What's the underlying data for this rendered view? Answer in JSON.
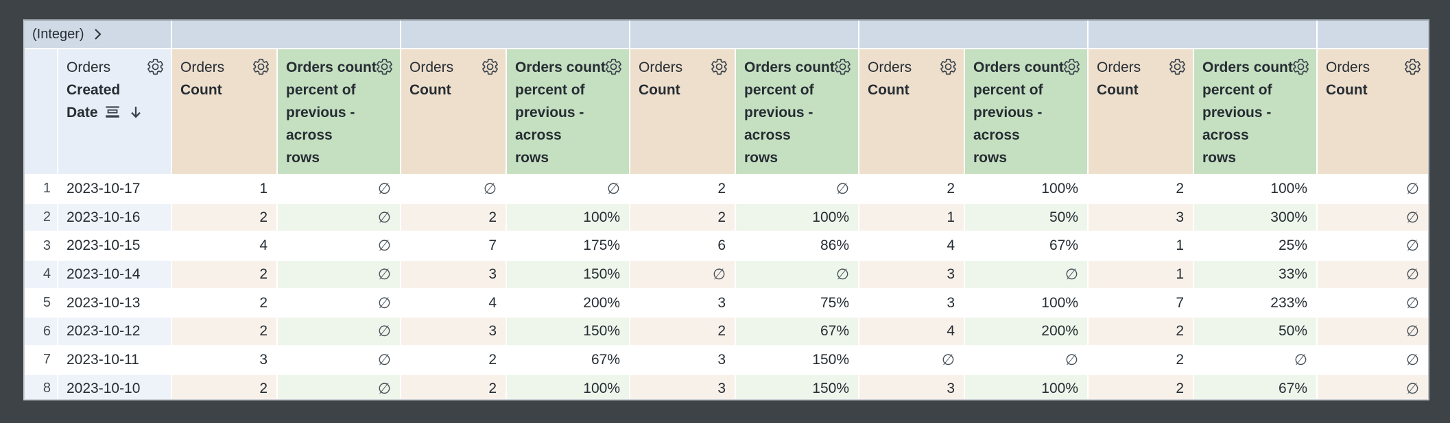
{
  "pivot_header": {
    "label": "(Integer)"
  },
  "first_column": {
    "view": "Orders",
    "field_line1": "Created",
    "field_line2": "Date"
  },
  "measure_header": {
    "view": "Orders",
    "field": "Count"
  },
  "calc_header_lines": [
    "Orders count",
    "percent of",
    "previous -",
    "across",
    "rows"
  ],
  "null_symbol": "∅",
  "row_numbers": [
    "1",
    "2",
    "3",
    "4",
    "5",
    "6",
    "7",
    "8"
  ],
  "dates": [
    "2023-10-17",
    "2023-10-16",
    "2023-10-15",
    "2023-10-14",
    "2023-10-13",
    "2023-10-12",
    "2023-10-11",
    "2023-10-10"
  ],
  "data_columns": [
    {
      "type": "measure",
      "values": [
        "1",
        "2",
        "4",
        "2",
        "2",
        "2",
        "3",
        "2"
      ]
    },
    {
      "type": "calc",
      "values": [
        "∅",
        "∅",
        "∅",
        "∅",
        "∅",
        "∅",
        "∅",
        "∅"
      ]
    },
    {
      "type": "measure",
      "values": [
        "∅",
        "2",
        "7",
        "3",
        "4",
        "3",
        "2",
        "2"
      ]
    },
    {
      "type": "calc",
      "values": [
        "∅",
        "100%",
        "175%",
        "150%",
        "200%",
        "150%",
        "67%",
        "100%"
      ]
    },
    {
      "type": "measure",
      "values": [
        "2",
        "2",
        "6",
        "∅",
        "3",
        "2",
        "3",
        "3"
      ]
    },
    {
      "type": "calc",
      "values": [
        "∅",
        "100%",
        "86%",
        "∅",
        "75%",
        "67%",
        "150%",
        "150%"
      ]
    },
    {
      "type": "measure",
      "values": [
        "2",
        "1",
        "4",
        "3",
        "3",
        "4",
        "∅",
        "3"
      ]
    },
    {
      "type": "calc",
      "values": [
        "100%",
        "50%",
        "67%",
        "∅",
        "100%",
        "200%",
        "∅",
        "100%"
      ]
    },
    {
      "type": "measure",
      "values": [
        "2",
        "3",
        "1",
        "1",
        "7",
        "2",
        "2",
        "2"
      ]
    },
    {
      "type": "calc",
      "values": [
        "100%",
        "300%",
        "25%",
        "33%",
        "233%",
        "50%",
        "∅",
        "67%"
      ]
    },
    {
      "type": "measure",
      "values": [
        "∅",
        "∅",
        "∅",
        "∅",
        "∅",
        "∅",
        "∅",
        "∅"
      ]
    }
  ],
  "colors": {
    "frame_bg": "#3e4347",
    "band_bg": "#cfdae6",
    "dim_hdr": "#e8eef7",
    "meas_hdr": "#eedfcd",
    "calc_hdr": "#c5dfc1",
    "dim_tint": "#eef2f9",
    "meas_tint": "#f8f1ea",
    "calc_tint": "#eef6ec",
    "text": "#262d33",
    "icon": "#3a434b",
    "grid_line": "#ffffff"
  }
}
